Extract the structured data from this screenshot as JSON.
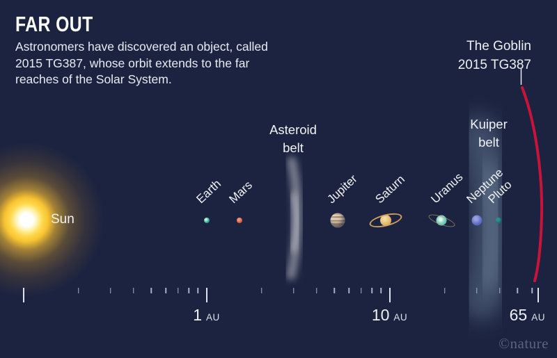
{
  "header": {
    "title": "FAR OUT",
    "intro": "Astronomers have discovered an object, called\n2015 TG387, whose orbit extends to the far\nreaches of the Solar System."
  },
  "goblin": {
    "label": "The Goblin\n2015 TG387"
  },
  "sun": {
    "label": "Sun"
  },
  "belts": {
    "asteroid": "Asteroid\nbelt",
    "kuiper": "Kuiper\nbelt"
  },
  "planets": [
    {
      "name": "Earth",
      "au": 1.0
    },
    {
      "name": "Mars",
      "au": 1.52
    },
    {
      "name": "Jupiter",
      "au": 5.2
    },
    {
      "name": "Saturn",
      "au": 9.54
    },
    {
      "name": "Uranus",
      "au": 19.2
    },
    {
      "name": "Neptune",
      "au": 30.1
    },
    {
      "name": "Pluto",
      "au": 39.5
    }
  ],
  "axis": {
    "unit": "AU",
    "major_ticks": [
      {
        "au": 0.1,
        "label": ""
      },
      {
        "au": 1,
        "label": "1"
      },
      {
        "au": 10,
        "label": "10"
      },
      {
        "au": 65,
        "label": "65"
      }
    ],
    "minor_ticks": [
      0.2,
      0.3,
      0.4,
      0.5,
      0.6,
      0.7,
      0.8,
      0.9,
      2,
      3,
      4,
      5,
      6,
      7,
      8,
      9,
      20,
      30,
      40,
      50,
      60
    ]
  },
  "credit": "©nature",
  "colors": {
    "background": "#1b2340",
    "orbit_red": "#c8133a",
    "text": "#f0f2f7"
  }
}
